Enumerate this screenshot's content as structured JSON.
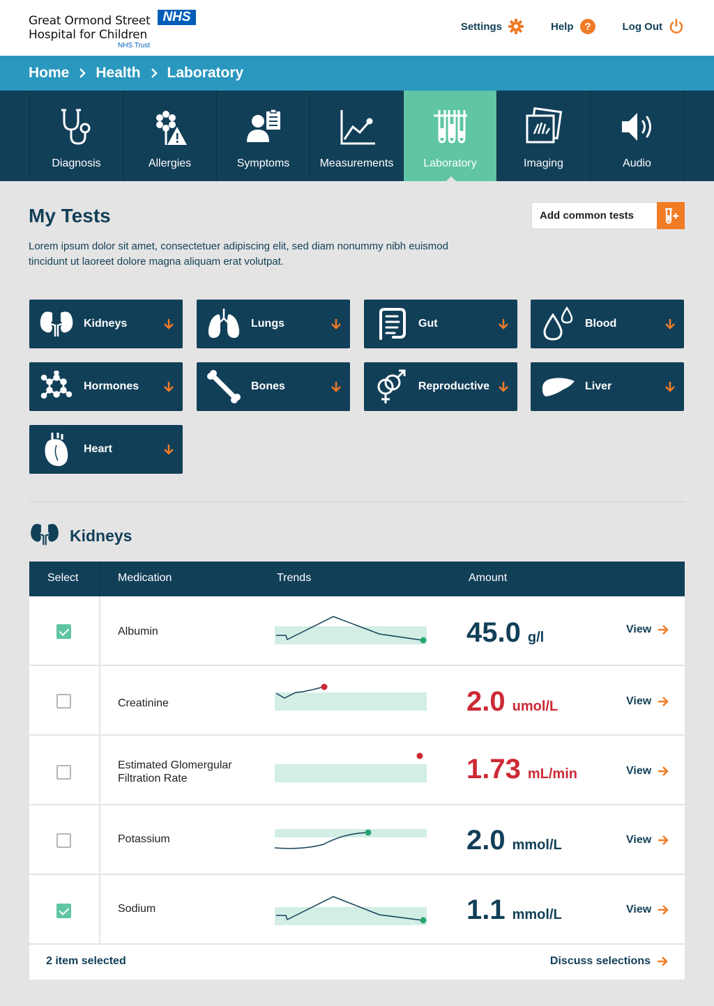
{
  "brand": {
    "line1": "Great Ormond Street",
    "line2": "Hospital for Children",
    "badge": "NHS",
    "trust": "NHS Trust"
  },
  "toplinks": [
    {
      "label": "Settings",
      "icon": "gear-icon"
    },
    {
      "label": "Help",
      "icon": "help-icon"
    },
    {
      "label": "Log Out",
      "icon": "power-icon"
    }
  ],
  "breadcrumb": [
    "Home",
    "Health",
    "Laboratory"
  ],
  "nav": [
    {
      "label": "Diagnosis",
      "icon": "stethoscope-icon"
    },
    {
      "label": "Allergies",
      "icon": "flower-warning-icon"
    },
    {
      "label": "Symptoms",
      "icon": "person-clipboard-icon"
    },
    {
      "label": "Measurements",
      "icon": "line-chart-icon"
    },
    {
      "label": "Laboratory",
      "icon": "test-tubes-icon",
      "active": true
    },
    {
      "label": "Imaging",
      "icon": "xray-icon"
    },
    {
      "label": "Audio",
      "icon": "speaker-icon"
    }
  ],
  "main": {
    "title": "My Tests",
    "description": "Lorem ipsum dolor sit amet, consectetuer adipiscing elit, sed diam nonummy nibh euismod tincidunt ut laoreet dolore magna aliquam erat volutpat.",
    "add_button": "Add common tests"
  },
  "categories": [
    {
      "label": "Kidneys",
      "icon": "kidneys-icon"
    },
    {
      "label": "Lungs",
      "icon": "lungs-icon"
    },
    {
      "label": "Gut",
      "icon": "gut-icon"
    },
    {
      "label": "Blood",
      "icon": "blood-drops-icon"
    },
    {
      "label": "Hormones",
      "icon": "molecule-icon"
    },
    {
      "label": "Bones",
      "icon": "bone-icon"
    },
    {
      "label": "Reproductive",
      "icon": "gender-icon"
    },
    {
      "label": "Liver",
      "icon": "liver-icon"
    },
    {
      "label": "Heart",
      "icon": "heart-organ-icon"
    }
  ],
  "section": {
    "title": "Kidneys",
    "icon": "kidneys-icon"
  },
  "table": {
    "headers": [
      "Select",
      "Medication",
      "Trends",
      "Amount"
    ],
    "rows": [
      {
        "name": "Albumin",
        "checked": true,
        "value": "45.0",
        "unit": "g/l",
        "status": "normal",
        "view": "View"
      },
      {
        "name": "Creatinine",
        "checked": false,
        "value": "2.0",
        "unit": "umol/L",
        "status": "alert",
        "view": "View"
      },
      {
        "name": "Estimated Glomergular Filtration Rate",
        "checked": false,
        "value": "1.73",
        "unit": "mL/min",
        "status": "alert",
        "view": "View"
      },
      {
        "name": "Potassium",
        "checked": false,
        "value": "2.0",
        "unit": "mmol/L",
        "status": "normal",
        "view": "View"
      },
      {
        "name": "Sodium",
        "checked": true,
        "value": "1.1",
        "unit": "mmol/L",
        "status": "normal",
        "view": "View"
      }
    ],
    "footer_selected": "2 item selected",
    "footer_action": "Discuss selections"
  },
  "colors": {
    "navy": "#123f58",
    "teal": "#5fc5a4",
    "blue_bar": "#2a97bf",
    "orange": "#f07c26",
    "alert": "#cc2a36",
    "band": "#d2eee5"
  }
}
